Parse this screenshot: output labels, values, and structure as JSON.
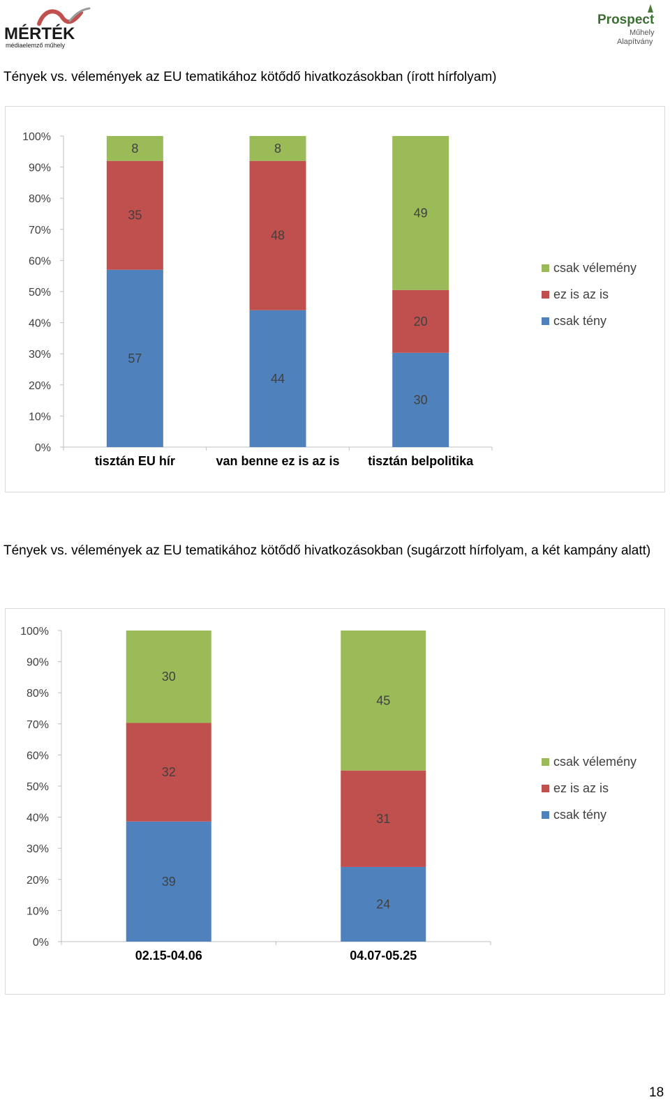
{
  "header": {
    "logo_left": {
      "word": "MÉRTÉK",
      "subtitle": "médiaelemző műhely"
    },
    "logo_right": {
      "word": "Prospect",
      "line2": "Műhely",
      "line3": "Alapítvány"
    }
  },
  "captions": {
    "chart1": "Tények vs. vélemények az EU tematikához kötődő hivatkozásokban (írott hírfolyam)",
    "chart2": "Tények vs. vélemények az EU tematikához kötődő hivatkozásokban (sugárzott hírfolyam, a két kampány alatt)"
  },
  "colors": {
    "csak_teny": "#4f81bd",
    "ez_is_az_is": "#c0504d",
    "csak_velemeny": "#9bbb59",
    "axis": "#bfbfbf"
  },
  "chart_data": [
    {
      "type": "bar",
      "stacked": "percent",
      "title": "Tények vs. vélemények az EU tematikához kötődő hivatkozásokban (írott hírfolyam)",
      "categories": [
        "tisztán EU hír",
        "van benne ez is az is",
        "tisztán belpolitika"
      ],
      "series": [
        {
          "name": "csak tény",
          "values": [
            57,
            44,
            30
          ]
        },
        {
          "name": "ez is az is",
          "values": [
            35,
            48,
            20
          ]
        },
        {
          "name": "csak vélemény",
          "values": [
            8,
            8,
            49
          ]
        }
      ],
      "legend": [
        "csak vélemény",
        "ez is az is",
        "csak tény"
      ],
      "legend_position": "right",
      "y_ticks": [
        "0%",
        "10%",
        "20%",
        "30%",
        "40%",
        "50%",
        "60%",
        "70%",
        "80%",
        "90%",
        "100%"
      ],
      "ylim": [
        0,
        100
      ]
    },
    {
      "type": "bar",
      "stacked": "percent",
      "title": "Tények vs. vélemények az EU tematikához kötődő hivatkozásokban (sugárzott hírfolyam, a két kampány alatt)",
      "categories": [
        "02.15-04.06",
        "04.07-05.25"
      ],
      "series": [
        {
          "name": "csak tény",
          "values": [
            39,
            24
          ]
        },
        {
          "name": "ez is az is",
          "values": [
            32,
            31
          ]
        },
        {
          "name": "csak vélemény",
          "values": [
            30,
            45
          ]
        }
      ],
      "legend": [
        "csak vélemény",
        "ez is az is",
        "csak tény"
      ],
      "legend_position": "right",
      "y_ticks": [
        "0%",
        "10%",
        "20%",
        "30%",
        "40%",
        "50%",
        "60%",
        "70%",
        "80%",
        "90%",
        "100%"
      ],
      "ylim": [
        0,
        100
      ]
    }
  ],
  "page_number": "18"
}
